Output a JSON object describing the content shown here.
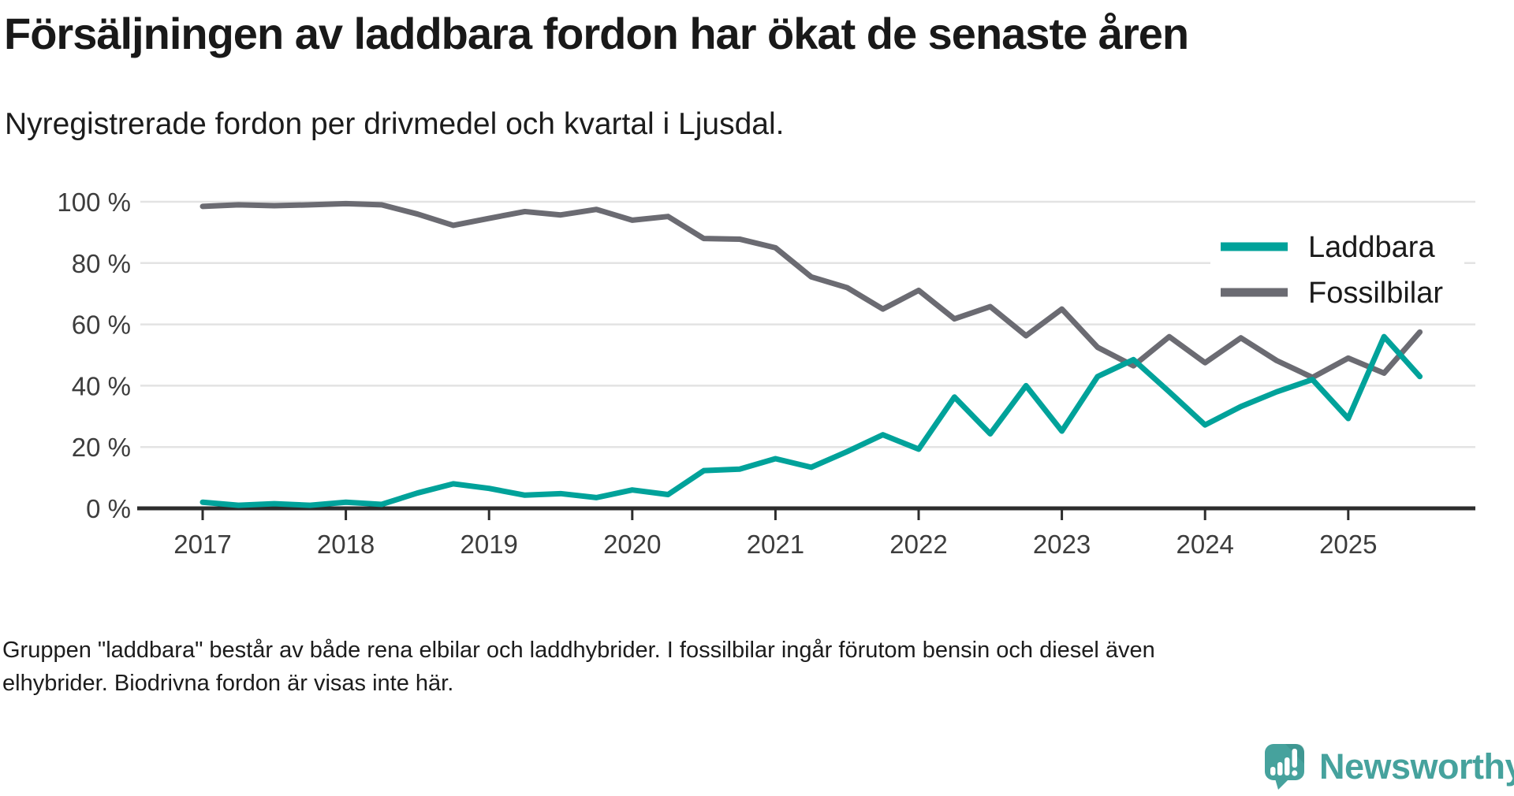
{
  "title": "Försäljningen av laddbara fordon har ökat de senaste åren",
  "subtitle": "Nyregistrerade fordon per drivmedel och kvartal i Ljusdal.",
  "footnote": "Gruppen \"laddbara\" består av både rena elbilar och laddhybrider. I fossilbilar ingår förutom bensin och diesel även elhybrider. Biodrivna fordon är visas inte här.",
  "logo": {
    "text": "Newsworthy",
    "color": "#46a29d"
  },
  "colors": {
    "axis": "#2d2d2d",
    "gridline": "#e3e3e3",
    "tick_label": "#3d3d3d",
    "legend_background": "#ffffff",
    "laddbara": "#00a29a",
    "fossilbilar": "#6b6b72"
  },
  "chart_data": {
    "type": "line",
    "title": "Försäljningen av laddbara fordon har ökat de senaste åren",
    "subtitle": "Nyregistrerade fordon per drivmedel och kvartal i Ljusdal.",
    "unit": "percent",
    "frequency": "quarterly",
    "x_start": "2017 Q1",
    "x_end": "2025 Q3",
    "x_tick_labels": [
      "2017",
      "2018",
      "2019",
      "2020",
      "2021",
      "2022",
      "2023",
      "2024",
      "2025"
    ],
    "y_tick_labels": [
      "0 %",
      "20 %",
      "40 %",
      "60 %",
      "80 %",
      "100 %"
    ],
    "ylim": [
      0,
      100
    ],
    "grid": "horizontal",
    "legend_position": "top-right",
    "series": [
      {
        "name": "Laddbara",
        "color": "#00a29a",
        "values": [
          2,
          1,
          1.5,
          1,
          2,
          1.3,
          5,
          8,
          6.5,
          4.3,
          4.8,
          3.5,
          6,
          4.5,
          12.3,
          12.8,
          16.2,
          13.4,
          18.5,
          24,
          19.3,
          36.3,
          24.3,
          40,
          25.2,
          43,
          48.5,
          38,
          27.2,
          33.2,
          38,
          42,
          29.3,
          56,
          43
        ]
      },
      {
        "name": "Fossilbilar",
        "color": "#6b6b72",
        "values": [
          98.5,
          99,
          98.7,
          99,
          99.4,
          99,
          96,
          92.3,
          94.6,
          96.8,
          95.7,
          97.5,
          94,
          95.2,
          88,
          87.8,
          85,
          75.5,
          72,
          65,
          71.1,
          61.8,
          65.8,
          56.3,
          65,
          52.5,
          46.5,
          56,
          47.5,
          55.6,
          48.2,
          42.7,
          49,
          44.1,
          57.5
        ]
      }
    ]
  }
}
